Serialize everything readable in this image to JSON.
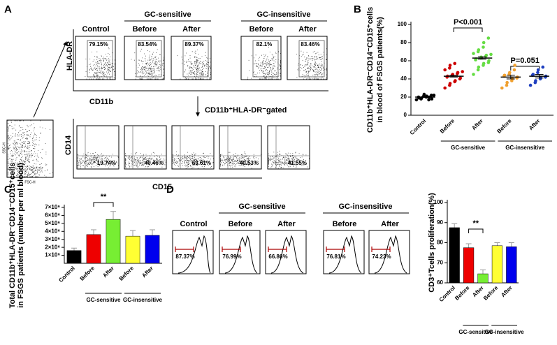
{
  "panels": {
    "a": "A",
    "b": "B",
    "c": "C",
    "d": "D"
  },
  "flow": {
    "groups": [
      "GC-sensitive",
      "GC-insensitive"
    ],
    "top_labels": [
      "Control",
      "Before",
      "After",
      "Before",
      "After"
    ],
    "top_percent": [
      "79.15%",
      "83.54%",
      "89.37%",
      "82.1%",
      "83.46%"
    ],
    "bottom_percent": [
      "19.74%",
      "40.46%",
      "63.61%",
      "40.53%",
      "41.55%"
    ],
    "y_top": "HLA-DR",
    "x_top": "CD11b",
    "gate": "CD11b⁺HLA-DR⁻gated",
    "y_bottom": "CD14",
    "x_bottom": "CD15",
    "ssc": "SSC-H",
    "fsc": "FSC-H"
  },
  "prolif": {
    "groups": [
      "GC-sensitive",
      "GC-insensitive"
    ],
    "labels": [
      "Control",
      "Before",
      "After",
      "Before",
      "After"
    ],
    "percent": [
      "87.37%",
      "76.99%",
      "66.86%",
      "76.81%",
      "74.23%"
    ]
  },
  "chart_data": [
    {
      "type": "dot",
      "ylabel_lines": [
        "CD11b⁺HLA-DR⁻CD14⁻CD15⁺cells",
        "in blood of FSGS patients(%)"
      ],
      "categories": [
        "Control",
        "Before",
        "After",
        "Before",
        "After"
      ],
      "group_labels": [
        "GC-sensitive",
        "GC-insensitive"
      ],
      "colors": [
        "#000000",
        "#cc0000",
        "#66dd44",
        "#f0a030",
        "#1f3fbf"
      ],
      "points": [
        [
          17,
          18,
          19,
          20,
          21,
          22,
          18,
          20,
          19,
          21,
          23,
          17,
          20,
          22
        ],
        [
          30,
          33,
          35,
          37,
          38,
          40,
          41,
          42,
          43,
          44,
          45,
          46,
          47,
          48,
          50,
          52,
          55,
          57
        ],
        [
          45,
          50,
          53,
          55,
          57,
          58,
          60,
          61,
          62,
          63,
          64,
          65,
          66,
          67,
          68,
          70,
          72,
          75,
          80,
          85
        ],
        [
          30,
          33,
          36,
          38,
          40,
          41,
          42,
          43,
          44,
          45,
          47,
          50,
          55
        ],
        [
          33,
          36,
          38,
          40,
          41,
          42,
          43,
          44,
          45,
          47,
          50,
          53
        ]
      ],
      "means": [
        20,
        43,
        63,
        42,
        43
      ],
      "errors": [
        0.5,
        1,
        1.3,
        2,
        2
      ],
      "annotations": [
        "P<0.001",
        "P=0.051"
      ],
      "ylim": [
        0,
        100
      ],
      "yticks": [
        0,
        20,
        40,
        60,
        80,
        100
      ]
    },
    {
      "type": "bar",
      "ylabel_lines": [
        "Total CD11b⁺HLA-DR⁻CD14⁻CD15⁺cells",
        "in FSGS patients (number per ml blood)"
      ],
      "categories": [
        "Control",
        "Before",
        "After",
        "Before",
        "After"
      ],
      "group_labels": [
        "GC-sensitive",
        "GC-insensitive"
      ],
      "colors": [
        "#000000",
        "#ee0000",
        "#77ee33",
        "#ffff33",
        "#0000ee"
      ],
      "values": [
        1600000,
        3600000,
        5500000,
        3400000,
        3500000
      ],
      "errors": [
        300000,
        600000,
        1000000,
        700000,
        700000
      ],
      "annotations": [
        "**"
      ],
      "ylim": [
        0,
        7000000
      ],
      "yticks": [
        {
          "value": 1000000,
          "label": "1×10⁶"
        },
        {
          "value": 2000000,
          "label": "2×10⁶"
        },
        {
          "value": 3000000,
          "label": "3×10⁶"
        },
        {
          "value": 4000000,
          "label": "4×10⁶"
        },
        {
          "value": 5000000,
          "label": "5×10⁶"
        },
        {
          "value": 6000000,
          "label": "6×10⁶"
        },
        {
          "value": 7000000,
          "label": "7×10⁶"
        }
      ]
    },
    {
      "type": "bar",
      "ylabel_lines": [
        "CD3⁺Tcells proliferation(%)"
      ],
      "categories": [
        "Control",
        "Before",
        "After",
        "Before",
        "After"
      ],
      "group_labels": [
        "GC-sensitive",
        "GC-insensitive"
      ],
      "colors": [
        "#000000",
        "#ee0000",
        "#77ee33",
        "#ffff33",
        "#0000ee"
      ],
      "values": [
        87.5,
        77.5,
        64.5,
        78.5,
        78
      ],
      "errors": [
        2,
        2,
        2,
        1.5,
        2
      ],
      "annotations": [
        "**"
      ],
      "ylim": [
        60,
        100
      ],
      "yticks": [
        60,
        70,
        80,
        90,
        100
      ]
    }
  ]
}
